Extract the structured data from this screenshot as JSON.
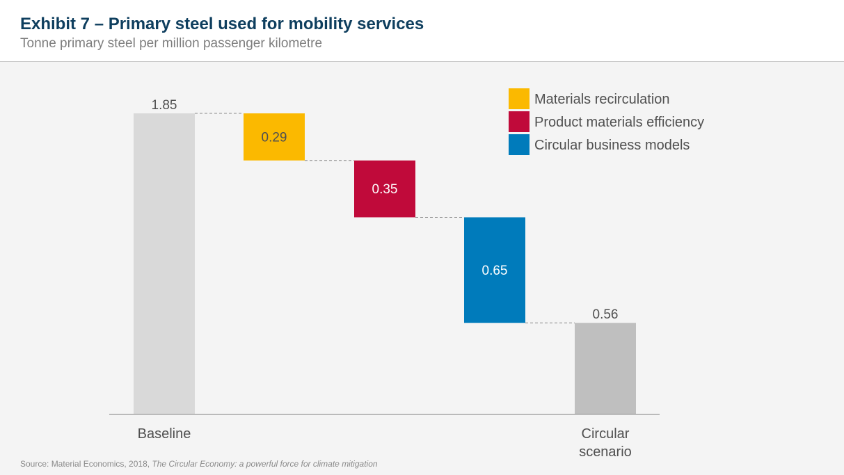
{
  "header": {
    "title": "Exhibit 7 – Primary steel used for mobility services",
    "subtitle": "Tonne primary steel per million passenger kilometre"
  },
  "source": {
    "prefix": "Source: Material  Economics, 2018, ",
    "publication": "The Circular Economy: a powerful  force for climate mitigation"
  },
  "chart_data": {
    "type": "bar",
    "subtype": "waterfall",
    "categories": [
      [
        "Baseline"
      ],
      [
        ""
      ],
      [
        ""
      ],
      [
        ""
      ],
      [
        "Circular",
        "scenario"
      ]
    ],
    "steps": [
      {
        "kind": "total",
        "value": 1.85,
        "label": "1.85",
        "color": "#d9d9d9",
        "label_position": "above"
      },
      {
        "kind": "decrease",
        "value": 0.29,
        "label": "0.29",
        "color": "#fbb900",
        "series": 0,
        "label_position": "inside",
        "label_color": "#505050"
      },
      {
        "kind": "decrease",
        "value": 0.35,
        "label": "0.35",
        "color": "#c00a3a",
        "series": 1,
        "label_position": "inside",
        "label_color": "#ffffff"
      },
      {
        "kind": "decrease",
        "value": 0.65,
        "label": "0.65",
        "color": "#007bbb",
        "series": 2,
        "label_position": "inside",
        "label_color": "#ffffff"
      },
      {
        "kind": "total",
        "value": 0.56,
        "label": "0.56",
        "color": "#bfbfbf",
        "label_position": "above"
      }
    ],
    "legend": {
      "position": "top-right",
      "entries": [
        {
          "name": "Materials recirculation",
          "color": "#fbb900"
        },
        {
          "name": "Product materials efficiency",
          "color": "#c00a3a"
        },
        {
          "name": "Circular business models",
          "color": "#007bbb"
        }
      ]
    },
    "ylim": [
      0,
      1.85
    ],
    "grid": false,
    "connectors": "dashed",
    "axis_color": "#7f7f7f",
    "label_color": "#505050"
  }
}
